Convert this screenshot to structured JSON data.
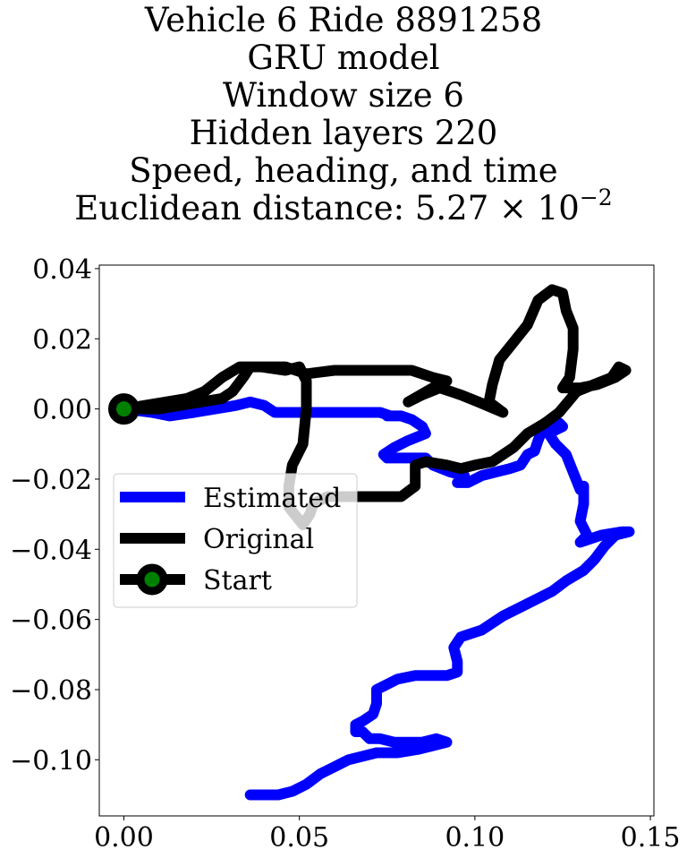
{
  "title": {
    "line1": "Vehicle 6 Ride 8891258",
    "line2": "GRU model",
    "line3": "Window size 6",
    "line4": "Hidden layers 220",
    "line5": "Speed, heading, and time",
    "line6_prefix": "Euclidean distance: 5.27 × 10",
    "line6_exponent": "−2"
  },
  "chart_data": {
    "type": "line",
    "xlim": [
      -0.007,
      0.151
    ],
    "ylim": [
      -0.116,
      0.041
    ],
    "x_ticks": [
      0.0,
      0.05,
      0.1,
      0.15
    ],
    "x_tick_labels": [
      "0.00",
      "0.05",
      "0.10",
      "0.15"
    ],
    "y_ticks": [
      0.04,
      0.02,
      0.0,
      -0.02,
      -0.04,
      -0.06,
      -0.08,
      -0.1
    ],
    "y_tick_labels": [
      "0.04",
      "0.02",
      "0.00",
      "−0.02",
      "−0.04",
      "−0.06",
      "−0.08",
      "−0.10"
    ],
    "grid": false,
    "legend_position": "center-left",
    "series": [
      {
        "name": "Estimated",
        "color": "#0000ff",
        "points": [
          [
            0.0,
            0.0
          ],
          [
            0.008,
            -0.001
          ],
          [
            0.013,
            -0.002
          ],
          [
            0.02,
            -0.001
          ],
          [
            0.026,
            0.0
          ],
          [
            0.032,
            0.001
          ],
          [
            0.036,
            0.002
          ],
          [
            0.04,
            0.001
          ],
          [
            0.043,
            -0.001
          ],
          [
            0.048,
            -0.001
          ],
          [
            0.055,
            -0.001
          ],
          [
            0.062,
            -0.001
          ],
          [
            0.068,
            -0.001
          ],
          [
            0.073,
            -0.001
          ],
          [
            0.076,
            -0.002
          ],
          [
            0.075,
            -0.002
          ],
          [
            0.079,
            -0.002
          ],
          [
            0.082,
            -0.003
          ],
          [
            0.085,
            -0.005
          ],
          [
            0.086,
            -0.007
          ],
          [
            0.081,
            -0.009
          ],
          [
            0.077,
            -0.011
          ],
          [
            0.074,
            -0.013
          ],
          [
            0.075,
            -0.014
          ],
          [
            0.081,
            -0.014
          ],
          [
            0.086,
            -0.014
          ],
          [
            0.088,
            -0.016
          ],
          [
            0.093,
            -0.018
          ],
          [
            0.097,
            -0.019
          ],
          [
            0.095,
            -0.021
          ],
          [
            0.098,
            -0.021
          ],
          [
            0.102,
            -0.019
          ],
          [
            0.106,
            -0.018
          ],
          [
            0.11,
            -0.017
          ],
          [
            0.113,
            -0.016
          ],
          [
            0.115,
            -0.013
          ],
          [
            0.117,
            -0.012
          ],
          [
            0.118,
            -0.009
          ],
          [
            0.12,
            -0.004
          ],
          [
            0.124,
            -0.004
          ],
          [
            0.125,
            -0.005
          ],
          [
            0.121,
            -0.007
          ],
          [
            0.123,
            -0.01
          ],
          [
            0.126,
            -0.013
          ],
          [
            0.128,
            -0.018
          ],
          [
            0.13,
            -0.023
          ],
          [
            0.131,
            -0.022
          ],
          [
            0.131,
            -0.027
          ],
          [
            0.13,
            -0.032
          ],
          [
            0.132,
            -0.036
          ],
          [
            0.13,
            -0.038
          ],
          [
            0.136,
            -0.036
          ],
          [
            0.142,
            -0.035
          ],
          [
            0.144,
            -0.035
          ],
          [
            0.14,
            -0.036
          ],
          [
            0.137,
            -0.039
          ],
          [
            0.134,
            -0.043
          ],
          [
            0.131,
            -0.046
          ],
          [
            0.126,
            -0.049
          ],
          [
            0.122,
            -0.052
          ],
          [
            0.118,
            -0.054
          ],
          [
            0.114,
            -0.056
          ],
          [
            0.108,
            -0.059
          ],
          [
            0.102,
            -0.063
          ],
          [
            0.099,
            -0.064
          ],
          [
            0.096,
            -0.065
          ],
          [
            0.094,
            -0.068
          ],
          [
            0.095,
            -0.072
          ],
          [
            0.095,
            -0.075
          ],
          [
            0.092,
            -0.076
          ],
          [
            0.087,
            -0.076
          ],
          [
            0.083,
            -0.076
          ],
          [
            0.078,
            -0.077
          ],
          [
            0.074,
            -0.079
          ],
          [
            0.072,
            -0.08
          ],
          [
            0.072,
            -0.084
          ],
          [
            0.071,
            -0.087
          ],
          [
            0.068,
            -0.089
          ],
          [
            0.066,
            -0.09
          ],
          [
            0.066,
            -0.092
          ],
          [
            0.068,
            -0.092
          ],
          [
            0.07,
            -0.094
          ],
          [
            0.073,
            -0.094
          ],
          [
            0.077,
            -0.095
          ],
          [
            0.081,
            -0.095
          ],
          [
            0.085,
            -0.095
          ],
          [
            0.089,
            -0.094
          ],
          [
            0.092,
            -0.095
          ],
          [
            0.088,
            -0.096
          ],
          [
            0.084,
            -0.097
          ],
          [
            0.078,
            -0.098
          ],
          [
            0.072,
            -0.098
          ],
          [
            0.068,
            -0.099
          ],
          [
            0.064,
            -0.1
          ],
          [
            0.06,
            -0.102
          ],
          [
            0.056,
            -0.104
          ],
          [
            0.052,
            -0.107
          ],
          [
            0.048,
            -0.109
          ],
          [
            0.044,
            -0.11
          ],
          [
            0.04,
            -0.11
          ],
          [
            0.036,
            -0.11
          ]
        ]
      },
      {
        "name": "Original",
        "color": "#000000",
        "points": [
          [
            0.0,
            0.0
          ],
          [
            0.006,
            0.001
          ],
          [
            0.012,
            0.002
          ],
          [
            0.018,
            0.003
          ],
          [
            0.023,
            0.005
          ],
          [
            0.028,
            0.009
          ],
          [
            0.033,
            0.012
          ],
          [
            0.039,
            0.012
          ],
          [
            0.046,
            0.011
          ],
          [
            0.05,
            0.012
          ],
          [
            0.052,
            0.008
          ],
          [
            0.052,
            0.0
          ],
          [
            0.051,
            -0.01
          ],
          [
            0.048,
            -0.016
          ],
          [
            0.047,
            -0.022
          ],
          [
            0.047,
            -0.028
          ],
          [
            0.051,
            -0.033
          ],
          [
            0.053,
            -0.03
          ],
          [
            0.054,
            -0.027
          ],
          [
            0.058,
            -0.025
          ],
          [
            0.063,
            -0.025
          ],
          [
            0.068,
            -0.025
          ],
          [
            0.074,
            -0.025
          ],
          [
            0.079,
            -0.025
          ],
          [
            0.083,
            -0.022
          ],
          [
            0.083,
            -0.016
          ],
          [
            0.086,
            -0.015
          ],
          [
            0.092,
            -0.016
          ],
          [
            0.096,
            -0.017
          ],
          [
            0.1,
            -0.016
          ],
          [
            0.105,
            -0.015
          ],
          [
            0.111,
            -0.011
          ],
          [
            0.115,
            -0.007
          ],
          [
            0.12,
            -0.004
          ],
          [
            0.124,
            -0.001
          ],
          [
            0.129,
            0.005
          ],
          [
            0.134,
            0.007
          ],
          [
            0.139,
            0.009
          ],
          [
            0.141,
            0.012
          ],
          [
            0.143,
            0.011
          ],
          [
            0.14,
            0.009
          ],
          [
            0.135,
            0.007
          ],
          [
            0.13,
            0.006
          ],
          [
            0.125,
            0.006
          ],
          [
            0.127,
            0.009
          ],
          [
            0.128,
            0.017
          ],
          [
            0.128,
            0.023
          ],
          [
            0.126,
            0.028
          ],
          [
            0.125,
            0.033
          ],
          [
            0.122,
            0.034
          ],
          [
            0.118,
            0.031
          ],
          [
            0.115,
            0.024
          ],
          [
            0.111,
            0.019
          ],
          [
            0.107,
            0.014
          ],
          [
            0.105,
            0.007
          ],
          [
            0.104,
            0.002
          ],
          [
            0.108,
            -0.001
          ],
          [
            0.101,
            0.002
          ],
          [
            0.096,
            0.004
          ],
          [
            0.09,
            0.006
          ],
          [
            0.085,
            0.004
          ],
          [
            0.081,
            0.002
          ],
          [
            0.088,
            0.006
          ],
          [
            0.092,
            0.008
          ],
          [
            0.088,
            0.009
          ],
          [
            0.082,
            0.011
          ],
          [
            0.075,
            0.011
          ],
          [
            0.068,
            0.011
          ],
          [
            0.06,
            0.011
          ],
          [
            0.052,
            0.01
          ],
          [
            0.046,
            0.012
          ],
          [
            0.04,
            0.012
          ],
          [
            0.036,
            0.012
          ],
          [
            0.034,
            0.009
          ],
          [
            0.031,
            0.005
          ],
          [
            0.028,
            0.003
          ],
          [
            0.022,
            0.002
          ],
          [
            0.016,
            0.001
          ],
          [
            0.01,
            0.0
          ],
          [
            0.005,
            0.0
          ]
        ]
      },
      {
        "name": "Start",
        "color": "#000000",
        "marker_color": "#008000",
        "points": [
          [
            0.0,
            0.0
          ]
        ]
      }
    ]
  }
}
